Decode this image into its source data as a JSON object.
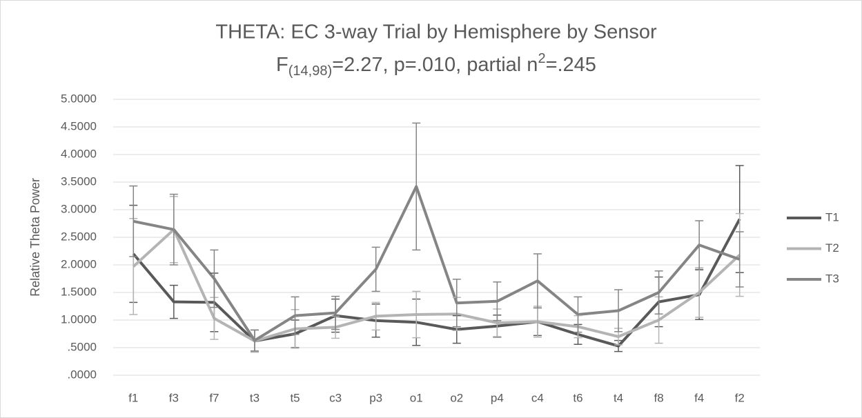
{
  "chart_data": {
    "type": "line",
    "title": "THETA: EC 3-way Trial by Hemisphere by Sensor",
    "subtitle_parts": [
      "F",
      "(14,98)",
      "=2.27, p=.010, partial n",
      "2",
      "=.245"
    ],
    "y_label": "Relative Theta Power",
    "categories": [
      "f1",
      "f3",
      "f7",
      "t3",
      "t5",
      "c3",
      "p3",
      "o1",
      "o2",
      "p4",
      "c4",
      "t6",
      "t4",
      "f8",
      "f4",
      "f2"
    ],
    "series": [
      {
        "name": "T1",
        "color": "#595959",
        "values": [
          2.2,
          1.33,
          1.32,
          0.62,
          0.75,
          1.08,
          0.99,
          0.96,
          0.83,
          0.89,
          0.97,
          0.74,
          0.53,
          1.33,
          1.46,
          2.83
        ],
        "errors": [
          0.88,
          0.3,
          0.53,
          0.2,
          0.25,
          0.3,
          0.3,
          0.42,
          0.25,
          0.2,
          0.25,
          0.18,
          0.1,
          0.45,
          0.45,
          0.97
        ]
      },
      {
        "name": "T2",
        "color": "#b4b4b4",
        "values": [
          1.97,
          2.64,
          1.03,
          0.62,
          0.84,
          0.87,
          1.07,
          1.1,
          1.11,
          0.95,
          0.97,
          0.88,
          0.7,
          1.0,
          1.5,
          2.18
        ],
        "errors": [
          0.87,
          0.6,
          0.38,
          0.2,
          0.35,
          0.2,
          0.25,
          0.42,
          0.3,
          0.25,
          0.28,
          0.2,
          0.15,
          0.42,
          0.45,
          0.75
        ]
      },
      {
        "name": "T3",
        "color": "#858585",
        "values": [
          2.79,
          2.64,
          1.75,
          0.63,
          1.08,
          1.13,
          1.92,
          3.42,
          1.31,
          1.34,
          1.71,
          1.1,
          1.17,
          1.5,
          2.36,
          2.1
        ],
        "errors": [
          0.64,
          0.64,
          0.52,
          0.19,
          0.34,
          0.3,
          0.4,
          1.15,
          0.43,
          0.35,
          0.49,
          0.32,
          0.38,
          0.39,
          0.44,
          0.5
        ]
      }
    ],
    "ylim": [
      0,
      5
    ],
    "yticks": [
      {
        "value": 0,
        "label": ".0000"
      },
      {
        "value": 0.5,
        "label": ".5000"
      },
      {
        "value": 1,
        "label": "1.0000"
      },
      {
        "value": 1.5,
        "label": "1.5000"
      },
      {
        "value": 2,
        "label": "2.0000"
      },
      {
        "value": 2.5,
        "label": "2.5000"
      },
      {
        "value": 3,
        "label": "3.0000"
      },
      {
        "value": 3.5,
        "label": "3.5000"
      },
      {
        "value": 4,
        "label": "4.0000"
      },
      {
        "value": 4.5,
        "label": "4.5000"
      },
      {
        "value": 5,
        "label": "5.0000"
      }
    ],
    "grid": true,
    "legend": "right"
  }
}
